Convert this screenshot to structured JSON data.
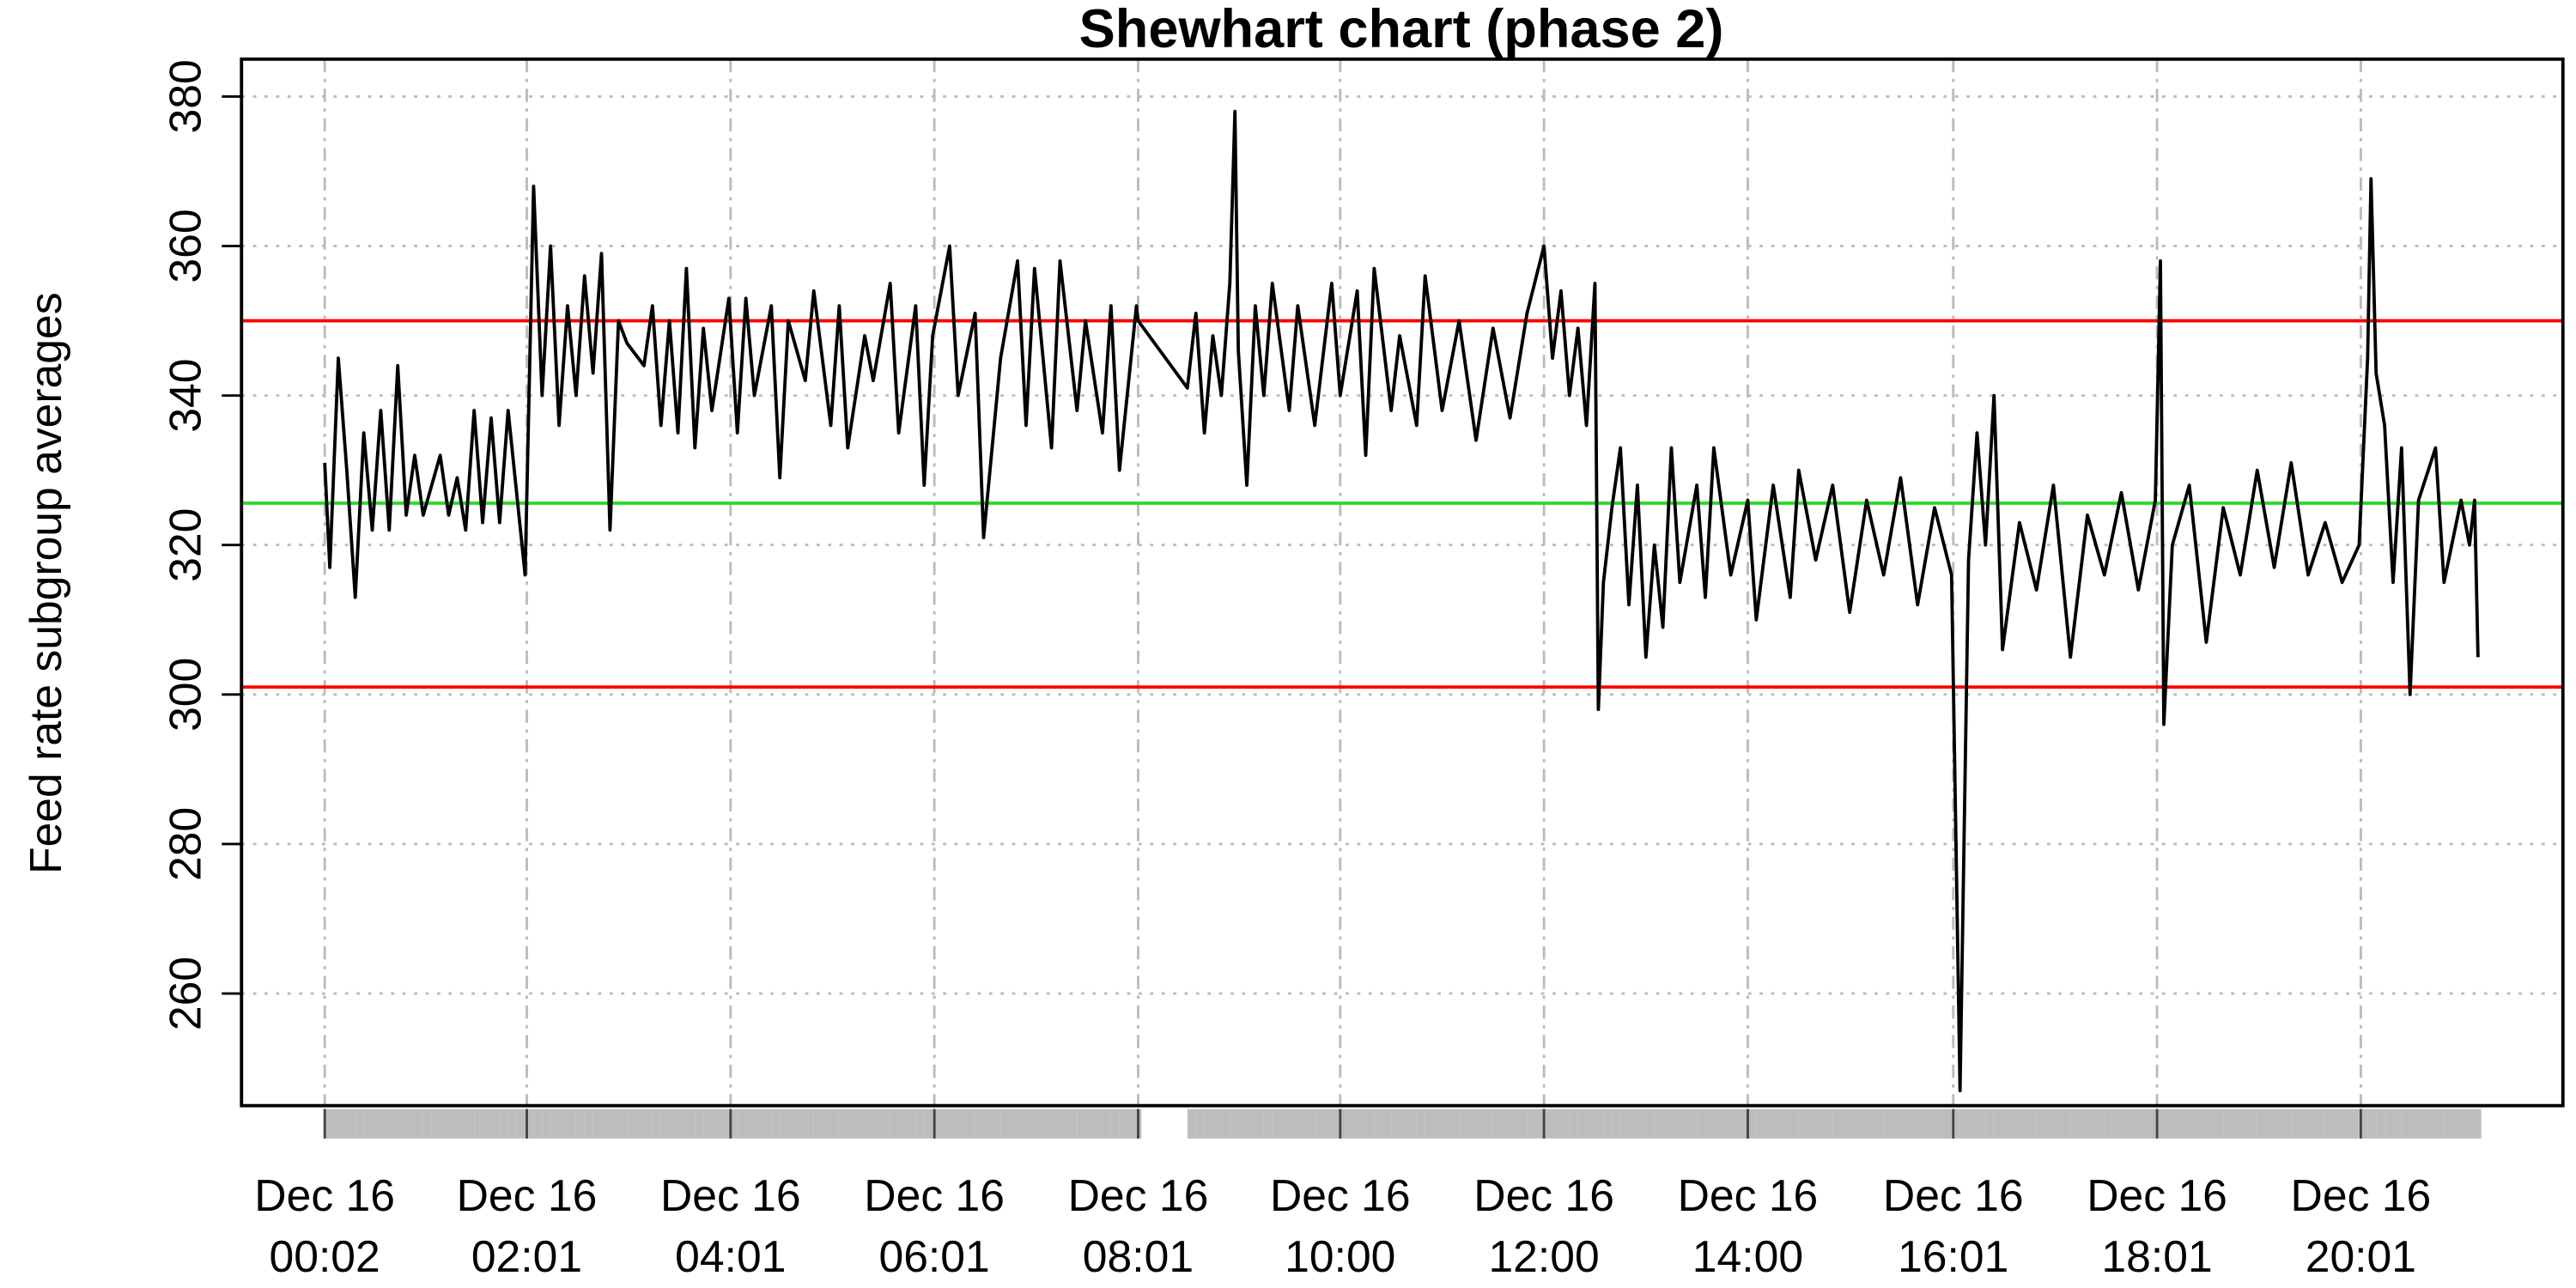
{
  "chart_data": {
    "type": "line",
    "title": "Shewhart chart (phase 2)",
    "y_label": "Feed rate subgroup averages",
    "xlim": [
      "Dec 15 23:13",
      "Dec 16 22:00"
    ],
    "ylim": [
      245,
      385
    ],
    "yticks": [
      260,
      280,
      300,
      320,
      340,
      360,
      380
    ],
    "xticks": [
      {
        "value": "Dec 16 00:02",
        "label": "Dec 16\n00:02"
      },
      {
        "value": "Dec 16 02:01",
        "label": "Dec 16\n02:01"
      },
      {
        "value": "Dec 16 04:01",
        "label": "Dec 16\n04:01"
      },
      {
        "value": "Dec 16 06:01",
        "label": "Dec 16\n06:01"
      },
      {
        "value": "Dec 16 08:01",
        "label": "Dec 16\n08:01"
      },
      {
        "value": "Dec 16 10:00",
        "label": "Dec 16\n10:00"
      },
      {
        "value": "Dec 16 12:00",
        "label": "Dec 16\n12:00"
      },
      {
        "value": "Dec 16 14:00",
        "label": "Dec 16\n14:00"
      },
      {
        "value": "Dec 16 16:01",
        "label": "Dec 16\n16:01"
      },
      {
        "value": "Dec 16 18:01",
        "label": "Dec 16\n18:01"
      },
      {
        "value": "Dec 16 20:01",
        "label": "Dec 16\n20:01"
      }
    ],
    "grid": true,
    "rug_color": "#bdbdbd",
    "control_lines": [
      {
        "value": 350,
        "color": "#ff0000"
      },
      {
        "value": 325.6,
        "color": "#22dd22"
      },
      {
        "value": 301,
        "color": "#ff0000"
      }
    ],
    "series": [
      {
        "color": "#000000",
        "x": [
          "Dec 16 00:02",
          "Dec 16 00:05",
          "Dec 16 00:10",
          "Dec 16 00:15",
          "Dec 16 00:20",
          "Dec 16 00:25",
          "Dec 16 00:30",
          "Dec 16 00:35",
          "Dec 16 00:40",
          "Dec 16 00:45",
          "Dec 16 00:50",
          "Dec 16 00:55",
          "Dec 16 01:00",
          "Dec 16 01:05",
          "Dec 16 01:10",
          "Dec 16 01:15",
          "Dec 16 01:20",
          "Dec 16 01:25",
          "Dec 16 01:30",
          "Dec 16 01:35",
          "Dec 16 01:40",
          "Dec 16 01:45",
          "Dec 16 01:50",
          "Dec 16 01:55",
          "Dec 16 02:00",
          "Dec 16 02:05",
          "Dec 16 02:10",
          "Dec 16 02:15",
          "Dec 16 02:20",
          "Dec 16 02:25",
          "Dec 16 02:30",
          "Dec 16 02:35",
          "Dec 16 02:40",
          "Dec 16 02:45",
          "Dec 16 02:50",
          "Dec 16 02:55",
          "Dec 16 03:00",
          "Dec 16 03:10",
          "Dec 16 03:15",
          "Dec 16 03:20",
          "Dec 16 03:25",
          "Dec 16 03:30",
          "Dec 16 03:35",
          "Dec 16 03:40",
          "Dec 16 03:45",
          "Dec 16 03:50",
          "Dec 16 04:00",
          "Dec 16 04:05",
          "Dec 16 04:10",
          "Dec 16 04:15",
          "Dec 16 04:25",
          "Dec 16 04:30",
          "Dec 16 04:35",
          "Dec 16 04:45",
          "Dec 16 04:50",
          "Dec 16 05:00",
          "Dec 16 05:05",
          "Dec 16 05:10",
          "Dec 16 05:20",
          "Dec 16 05:25",
          "Dec 16 05:35",
          "Dec 16 05:40",
          "Dec 16 05:50",
          "Dec 16 05:55",
          "Dec 16 06:00",
          "Dec 16 06:10",
          "Dec 16 06:15",
          "Dec 16 06:25",
          "Dec 16 06:30",
          "Dec 16 06:40",
          "Dec 16 06:50",
          "Dec 16 06:55",
          "Dec 16 07:00",
          "Dec 16 07:10",
          "Dec 16 07:15",
          "Dec 16 07:25",
          "Dec 16 07:30",
          "Dec 16 07:40",
          "Dec 16 07:45",
          "Dec 16 07:50",
          "Dec 16 08:00",
          "Dec 16 08:01",
          "Dec 16 08:30",
          "Dec 16 08:35",
          "Dec 16 08:40",
          "Dec 16 08:45",
          "Dec 16 08:50",
          "Dec 16 08:55",
          "Dec 16 08:58",
          "Dec 16 09:00",
          "Dec 16 09:05",
          "Dec 16 09:10",
          "Dec 16 09:15",
          "Dec 16 09:20",
          "Dec 16 09:30",
          "Dec 16 09:35",
          "Dec 16 09:45",
          "Dec 16 09:55",
          "Dec 16 10:00",
          "Dec 16 10:10",
          "Dec 16 10:15",
          "Dec 16 10:20",
          "Dec 16 10:30",
          "Dec 16 10:35",
          "Dec 16 10:45",
          "Dec 16 10:50",
          "Dec 16 11:00",
          "Dec 16 11:10",
          "Dec 16 11:20",
          "Dec 16 11:30",
          "Dec 16 11:40",
          "Dec 16 11:50",
          "Dec 16 12:00",
          "Dec 16 12:05",
          "Dec 16 12:10",
          "Dec 16 12:15",
          "Dec 16 12:20",
          "Dec 16 12:25",
          "Dec 16 12:30",
          "Dec 16 12:32",
          "Dec 16 12:35",
          "Dec 16 12:40",
          "Dec 16 12:45",
          "Dec 16 12:50",
          "Dec 16 12:55",
          "Dec 16 13:00",
          "Dec 16 13:05",
          "Dec 16 13:10",
          "Dec 16 13:15",
          "Dec 16 13:20",
          "Dec 16 13:30",
          "Dec 16 13:35",
          "Dec 16 13:40",
          "Dec 16 13:50",
          "Dec 16 14:00",
          "Dec 16 14:05",
          "Dec 16 14:15",
          "Dec 16 14:25",
          "Dec 16 14:30",
          "Dec 16 14:40",
          "Dec 16 14:50",
          "Dec 16 15:00",
          "Dec 16 15:10",
          "Dec 16 15:20",
          "Dec 16 15:30",
          "Dec 16 15:40",
          "Dec 16 15:50",
          "Dec 16 16:00",
          "Dec 16 16:05",
          "Dec 16 16:10",
          "Dec 16 16:15",
          "Dec 16 16:20",
          "Dec 16 16:25",
          "Dec 16 16:30",
          "Dec 16 16:40",
          "Dec 16 16:50",
          "Dec 16 17:00",
          "Dec 16 17:10",
          "Dec 16 17:20",
          "Dec 16 17:30",
          "Dec 16 17:40",
          "Dec 16 17:50",
          "Dec 16 18:00",
          "Dec 16 18:03",
          "Dec 16 18:05",
          "Dec 16 18:10",
          "Dec 16 18:20",
          "Dec 16 18:30",
          "Dec 16 18:40",
          "Dec 16 18:50",
          "Dec 16 19:00",
          "Dec 16 19:10",
          "Dec 16 19:20",
          "Dec 16 19:30",
          "Dec 16 19:40",
          "Dec 16 19:50",
          "Dec 16 20:00",
          "Dec 16 20:05",
          "Dec 16 20:07",
          "Dec 16 20:10",
          "Dec 16 20:15",
          "Dec 16 20:20",
          "Dec 16 20:25",
          "Dec 16 20:30",
          "Dec 16 20:35",
          "Dec 16 20:45",
          "Dec 16 20:50",
          "Dec 16 21:00",
          "Dec 16 21:05",
          "Dec 16 21:08",
          "Dec 16 21:10"
        ],
        "values": [
          331,
          317,
          345,
          330,
          313,
          335,
          322,
          338,
          322,
          344,
          324,
          332,
          324,
          328,
          332,
          324,
          329,
          322,
          338,
          323,
          337,
          323,
          338,
          327,
          316,
          368,
          340,
          360,
          336,
          352,
          340,
          356,
          343,
          359,
          322,
          350,
          347,
          344,
          352,
          336,
          350,
          335,
          357,
          333,
          349,
          338,
          353,
          335,
          353,
          340,
          352,
          329,
          350,
          342,
          354,
          336,
          352,
          333,
          348,
          342,
          355,
          335,
          352,
          328,
          348,
          360,
          340,
          351,
          321,
          345,
          358,
          336,
          357,
          333,
          358,
          338,
          350,
          335,
          352,
          330,
          352,
          350,
          341,
          351,
          335,
          348,
          340,
          355,
          378,
          346,
          328,
          352,
          340,
          355,
          338,
          352,
          336,
          355,
          340,
          354,
          332,
          357,
          338,
          348,
          336,
          356,
          338,
          350,
          334,
          349,
          337,
          351,
          360,
          345,
          354,
          340,
          349,
          336,
          355,
          298,
          315,
          325,
          333,
          312,
          328,
          305,
          320,
          309,
          333,
          315,
          328,
          313,
          333,
          316,
          326,
          310,
          328,
          313,
          330,
          318,
          328,
          311,
          326,
          316,
          329,
          312,
          325,
          316,
          247,
          318,
          335,
          320,
          340,
          306,
          323,
          314,
          328,
          305,
          324,
          316,
          327,
          314,
          326,
          358,
          296,
          320,
          328,
          307,
          325,
          316,
          330,
          317,
          331,
          316,
          323,
          315,
          320,
          345,
          369,
          343,
          336,
          315,
          333,
          300,
          326,
          333,
          315,
          326,
          320,
          326,
          305
        ]
      }
    ]
  }
}
